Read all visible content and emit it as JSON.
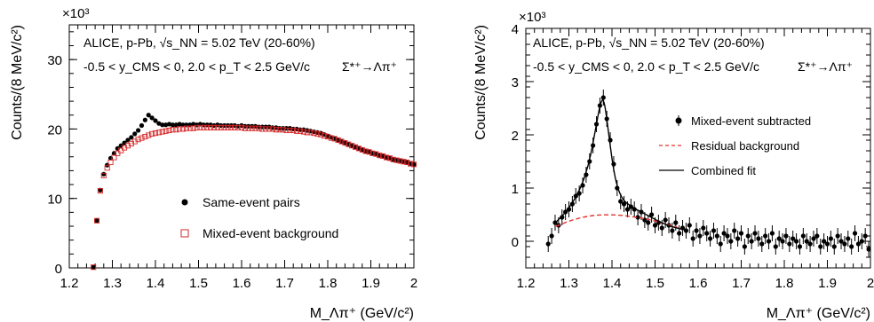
{
  "chart_data": [
    {
      "type": "scatter",
      "panel": "left",
      "exponent_label": "×10³",
      "ylabel": "Counts/(8 MeV/c²)",
      "xlabel": "M_Λπ⁺ (GeV/c²)",
      "xlim": [
        1.2,
        2.0
      ],
      "ylim": [
        0,
        35
      ],
      "xticks": [
        "1.2",
        "1.3",
        "1.4",
        "1.5",
        "1.6",
        "1.7",
        "1.8",
        "1.9",
        "2"
      ],
      "yticks": [
        "0",
        "10",
        "20",
        "30"
      ],
      "annotation": {
        "line1": "ALICE, p-Pb, √s_NN = 5.02 TeV (20-60%)",
        "line2": "-0.5 < y_CMS < 0, 2.0 < p_T < 2.5 GeV/c",
        "reaction": "Σ*⁺→Λπ⁺"
      },
      "legend": {
        "position": "bottom-right"
      },
      "series": [
        {
          "name": "Same-event pairs",
          "marker": "filled-circle",
          "color": "#000000",
          "x": [
            1.256,
            1.264,
            1.272,
            1.28,
            1.288,
            1.296,
            1.304,
            1.312,
            1.32,
            1.328,
            1.336,
            1.344,
            1.352,
            1.36,
            1.368,
            1.376,
            1.384,
            1.392,
            1.4,
            1.408,
            1.416,
            1.424,
            1.432,
            1.44,
            1.448,
            1.456,
            1.464,
            1.472,
            1.48,
            1.488,
            1.496,
            1.504,
            1.512,
            1.52,
            1.528,
            1.536,
            1.544,
            1.552,
            1.56,
            1.568,
            1.576,
            1.584,
            1.592,
            1.6,
            1.608,
            1.616,
            1.624,
            1.632,
            1.64,
            1.648,
            1.656,
            1.664,
            1.672,
            1.68,
            1.688,
            1.696,
            1.704,
            1.712,
            1.72,
            1.728,
            1.736,
            1.744,
            1.752,
            1.76,
            1.768,
            1.776,
            1.784,
            1.792,
            1.8,
            1.808,
            1.816,
            1.824,
            1.832,
            1.84,
            1.848,
            1.856,
            1.864,
            1.872,
            1.88,
            1.888,
            1.896,
            1.904,
            1.912,
            1.92,
            1.928,
            1.936,
            1.944,
            1.952,
            1.96,
            1.968,
            1.976,
            1.984,
            1.992,
            2.0
          ],
          "y": [
            0.1,
            6.8,
            11.2,
            13.5,
            14.8,
            15.8,
            16.5,
            17.2,
            17.6,
            18.0,
            18.4,
            18.8,
            19.3,
            19.8,
            20.5,
            21.3,
            22.0,
            21.6,
            21.2,
            20.8,
            20.6,
            20.6,
            20.7,
            20.6,
            20.6,
            20.7,
            20.6,
            20.6,
            20.6,
            20.7,
            20.6,
            20.7,
            20.6,
            20.6,
            20.6,
            20.5,
            20.6,
            20.5,
            20.5,
            20.5,
            20.5,
            20.5,
            20.4,
            20.5,
            20.4,
            20.4,
            20.4,
            20.4,
            20.3,
            20.3,
            20.3,
            20.3,
            20.2,
            20.2,
            20.1,
            20.1,
            20.1,
            20.1,
            20.0,
            20.0,
            19.9,
            19.9,
            19.8,
            19.7,
            19.6,
            19.5,
            19.4,
            19.2,
            19.0,
            18.8,
            18.6,
            18.4,
            18.2,
            18.0,
            17.8,
            17.6,
            17.4,
            17.2,
            17.0,
            16.8,
            16.7,
            16.5,
            16.4,
            16.2,
            16.1,
            15.9,
            15.8,
            15.6,
            15.5,
            15.4,
            15.3,
            15.2,
            15.0,
            14.9
          ]
        },
        {
          "name": "Mixed-event background",
          "marker": "open-square",
          "color": "#d62728",
          "x": [
            1.256,
            1.264,
            1.272,
            1.28,
            1.288,
            1.296,
            1.304,
            1.312,
            1.32,
            1.328,
            1.336,
            1.344,
            1.352,
            1.36,
            1.368,
            1.376,
            1.384,
            1.392,
            1.4,
            1.408,
            1.416,
            1.424,
            1.432,
            1.44,
            1.448,
            1.456,
            1.464,
            1.472,
            1.48,
            1.488,
            1.496,
            1.504,
            1.512,
            1.52,
            1.528,
            1.536,
            1.544,
            1.552,
            1.56,
            1.568,
            1.576,
            1.584,
            1.592,
            1.6,
            1.608,
            1.616,
            1.624,
            1.632,
            1.64,
            1.648,
            1.656,
            1.664,
            1.672,
            1.68,
            1.688,
            1.696,
            1.704,
            1.712,
            1.72,
            1.728,
            1.736,
            1.744,
            1.752,
            1.76,
            1.768,
            1.776,
            1.784,
            1.792,
            1.8,
            1.808,
            1.816,
            1.824,
            1.832,
            1.84,
            1.848,
            1.856,
            1.864,
            1.872,
            1.88,
            1.888,
            1.896,
            1.904,
            1.912,
            1.92,
            1.928,
            1.936,
            1.944,
            1.952,
            1.96,
            1.968,
            1.976,
            1.984,
            1.992,
            2.0
          ],
          "y": [
            0.1,
            6.8,
            11.1,
            13.3,
            14.4,
            15.2,
            15.9,
            16.5,
            16.9,
            17.3,
            17.6,
            17.9,
            18.2,
            18.5,
            18.7,
            18.9,
            19.1,
            19.3,
            19.4,
            19.5,
            19.6,
            19.7,
            19.8,
            19.9,
            19.9,
            20.0,
            20.0,
            20.1,
            20.1,
            20.1,
            20.2,
            20.2,
            20.2,
            20.2,
            20.2,
            20.2,
            20.2,
            20.2,
            20.2,
            20.2,
            20.2,
            20.2,
            20.2,
            20.2,
            20.1,
            20.1,
            20.1,
            20.1,
            20.1,
            20.0,
            20.0,
            20.0,
            20.0,
            19.9,
            19.9,
            19.9,
            19.8,
            19.8,
            19.8,
            19.7,
            19.7,
            19.6,
            19.5,
            19.5,
            19.4,
            19.3,
            19.2,
            19.0,
            18.9,
            18.7,
            18.6,
            18.4,
            18.2,
            18.0,
            17.8,
            17.6,
            17.4,
            17.2,
            17.0,
            16.8,
            16.7,
            16.5,
            16.4,
            16.2,
            16.1,
            15.9,
            15.8,
            15.6,
            15.5,
            15.4,
            15.3,
            15.2,
            15.0,
            14.9
          ]
        }
      ]
    },
    {
      "type": "scatter",
      "panel": "right",
      "exponent_label": "×10³",
      "ylabel": "Counts/(8 MeV/c²)",
      "xlabel": "M_Λπ⁺ (GeV/c²)",
      "xlim": [
        1.2,
        2.0
      ],
      "ylim": [
        -0.5,
        4
      ],
      "xticks": [
        "1.2",
        "1.3",
        "1.4",
        "1.5",
        "1.6",
        "1.7",
        "1.8",
        "1.9",
        "2"
      ],
      "yticks": [
        "0",
        "1",
        "2",
        "3",
        "4"
      ],
      "annotation": {
        "line1": "ALICE, p-Pb, √s_NN = 5.02 TeV (20-60%)",
        "line2": "-0.5 < y_CMS < 0, 2.0 < p_T < 2.5 GeV/c",
        "reaction": "Σ*⁺→Λπ⁺"
      },
      "legend": {
        "position": "right"
      },
      "series": [
        {
          "name": "Mixed-event subtracted",
          "marker": "filled-circle-errorbar",
          "color": "#000000",
          "x": [
            1.252,
            1.26,
            1.268,
            1.276,
            1.284,
            1.292,
            1.3,
            1.308,
            1.316,
            1.324,
            1.332,
            1.34,
            1.348,
            1.356,
            1.364,
            1.372,
            1.38,
            1.388,
            1.396,
            1.404,
            1.412,
            1.42,
            1.428,
            1.436,
            1.444,
            1.452,
            1.46,
            1.468,
            1.476,
            1.484,
            1.492,
            1.5,
            1.508,
            1.516,
            1.524,
            1.532,
            1.54,
            1.548,
            1.556,
            1.564,
            1.572,
            1.58,
            1.588,
            1.596,
            1.604,
            1.612,
            1.62,
            1.628,
            1.636,
            1.644,
            1.652,
            1.66,
            1.668,
            1.676,
            1.684,
            1.692,
            1.7,
            1.708,
            1.716,
            1.724,
            1.732,
            1.74,
            1.748,
            1.756,
            1.764,
            1.772,
            1.78,
            1.788,
            1.796,
            1.804,
            1.812,
            1.82,
            1.828,
            1.836,
            1.844,
            1.852,
            1.86,
            1.868,
            1.876,
            1.884,
            1.892,
            1.9,
            1.908,
            1.916,
            1.924,
            1.932,
            1.94,
            1.948,
            1.956,
            1.964,
            1.972,
            1.98,
            1.988,
            1.996
          ],
          "y": [
            -0.05,
            0.1,
            0.35,
            0.3,
            0.45,
            0.55,
            0.6,
            0.7,
            0.85,
            0.9,
            1.05,
            1.25,
            1.5,
            1.8,
            2.2,
            2.55,
            2.7,
            2.3,
            1.9,
            1.45,
            1.0,
            0.75,
            0.7,
            0.6,
            0.65,
            0.6,
            0.45,
            0.55,
            0.4,
            0.35,
            0.5,
            0.3,
            0.35,
            0.25,
            0.4,
            0.3,
            0.2,
            0.35,
            0.15,
            0.25,
            0.2,
            0.3,
            0.05,
            0.2,
            0.1,
            0.25,
            0.15,
            0.05,
            0.2,
            0.1,
            -0.05,
            0.15,
            0.1,
            0.0,
            0.2,
            0.05,
            0.15,
            -0.1,
            0.1,
            0.0,
            0.15,
            0.05,
            -0.05,
            0.1,
            0.0,
            0.15,
            -0.1,
            0.05,
            0.0,
            0.1,
            -0.05,
            0.05,
            0.0,
            -0.1,
            0.1,
            0.0,
            -0.05,
            0.05,
            0.1,
            -0.1,
            0.0,
            -0.05,
            0.05,
            -0.1,
            0.1,
            0.0,
            -0.05,
            0.05,
            -0.1,
            0.15,
            -0.05,
            0.0,
            0.1,
            -0.15
          ],
          "err": 0.15
        },
        {
          "name": "Residual background",
          "marker": "dashed-line",
          "color": "#e8312f",
          "x": [
            1.27,
            1.3,
            1.33,
            1.36,
            1.39,
            1.42,
            1.45,
            1.48,
            1.51,
            1.54,
            1.56
          ],
          "y": [
            0.28,
            0.38,
            0.45,
            0.49,
            0.5,
            0.49,
            0.46,
            0.42,
            0.36,
            0.29,
            0.24
          ]
        },
        {
          "name": "Combined fit",
          "marker": "solid-line",
          "color": "#000000",
          "x": [
            1.27,
            1.29,
            1.31,
            1.33,
            1.345,
            1.355,
            1.365,
            1.372,
            1.378,
            1.383,
            1.388,
            1.395,
            1.403,
            1.412,
            1.425,
            1.44,
            1.46,
            1.48,
            1.5,
            1.52,
            1.54,
            1.56
          ],
          "y": [
            0.36,
            0.52,
            0.74,
            1.05,
            1.42,
            1.8,
            2.25,
            2.55,
            2.68,
            2.58,
            2.3,
            1.85,
            1.38,
            1.02,
            0.78,
            0.68,
            0.58,
            0.5,
            0.41,
            0.33,
            0.27,
            0.23
          ]
        }
      ]
    }
  ]
}
